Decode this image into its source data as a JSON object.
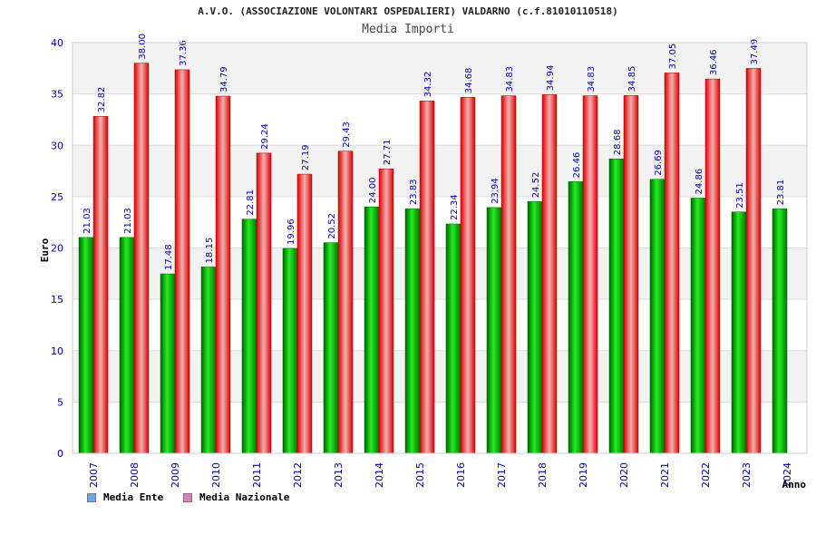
{
  "chart_data": {
    "type": "bar",
    "title": "A.V.O. (ASSOCIAZIONE VOLONTARI OSPEDALIERI) VALDARNO (c.f.81010110518)",
    "subtitle": "Media Importi",
    "xlabel": "Anno",
    "ylabel": "Euro",
    "ylim": [
      0,
      40
    ],
    "yticks": [
      0,
      5,
      10,
      15,
      20,
      25,
      30,
      35,
      40
    ],
    "grid": true,
    "legend_position": "bottom-left",
    "categories": [
      "2007",
      "2008",
      "2009",
      "2010",
      "2011",
      "2012",
      "2013",
      "2014",
      "2015",
      "2016",
      "2017",
      "2018",
      "2019",
      "2020",
      "2021",
      "2022",
      "2023",
      "2024"
    ],
    "series": [
      {
        "name": "Media Ente",
        "color": "#00aa00",
        "legend_color": "#6aa6e6",
        "values": [
          21.03,
          21.03,
          17.48,
          18.15,
          22.81,
          19.96,
          20.52,
          24.0,
          23.83,
          22.34,
          23.94,
          24.52,
          26.46,
          28.68,
          26.69,
          24.86,
          23.51,
          23.81
        ],
        "labels": [
          "21.03",
          "21.03",
          "17.48",
          "18.15",
          "22.81",
          "19.96",
          "20.52",
          "24.00",
          "23.83",
          "22.34",
          "23.94",
          "24.52",
          "26.46",
          "28.68",
          "26.69",
          "24.86",
          "23.51",
          "23.81"
        ]
      },
      {
        "name": "Media Nazionale",
        "color": "#ee1111",
        "legend_color": "#e080b8",
        "values": [
          32.82,
          38.0,
          37.36,
          34.79,
          29.24,
          27.19,
          29.43,
          27.71,
          34.32,
          34.68,
          34.83,
          34.94,
          34.83,
          34.85,
          37.05,
          36.46,
          37.49,
          null
        ],
        "labels": [
          "32.82",
          "38.00",
          "37.36",
          "34.79",
          "29.24",
          "27.19",
          "29.43",
          "27.71",
          "34.32",
          "34.68",
          "34.83",
          "34.94",
          "34.83",
          "34.85",
          "37.05",
          "36.46",
          "37.49",
          null
        ]
      }
    ]
  }
}
